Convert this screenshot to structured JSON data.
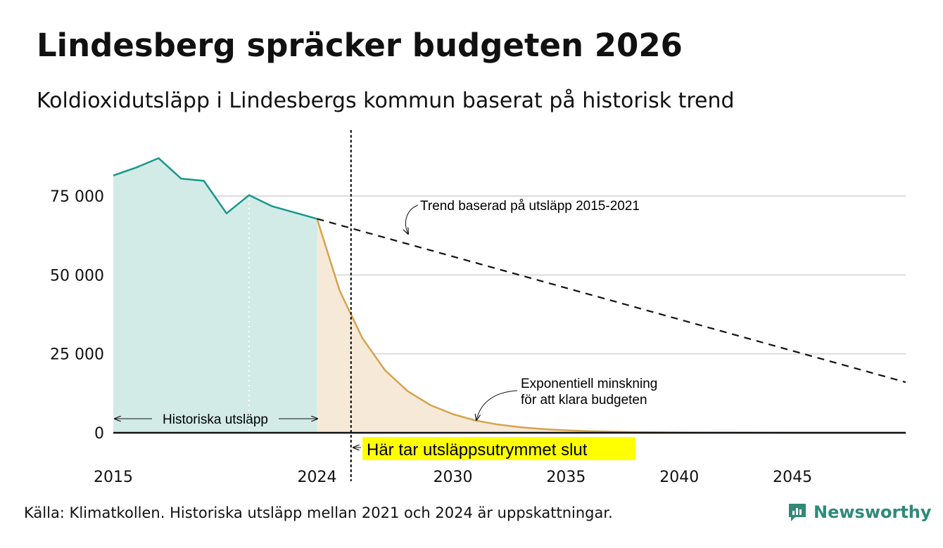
{
  "header": {
    "title": "Lindesberg spräcker budgeten 2026",
    "subtitle": "Koldioxidutsläpp i Lindesbergs kommun baserat på historisk trend"
  },
  "footer": {
    "source": "Källa: Klimatkollen. Historiska utsläpp mellan 2021 och 2024 är uppskattningar.",
    "brand": "Newsworthy"
  },
  "colors": {
    "historical_line": "#17978a",
    "historical_fill": "#d2ebe7",
    "decline_line": "#d5a44c",
    "decline_fill": "#f7e9d8",
    "highlight": "#ffff00",
    "grid": "#dcdcdc",
    "brand": "#2f8a78"
  },
  "chart_data": {
    "type": "area",
    "xlim": [
      2015,
      2050
    ],
    "ylim": [
      0,
      90000
    ],
    "x_ticks": [
      2015,
      2024,
      2030,
      2035,
      2040,
      2045
    ],
    "x_tick_labels": [
      "2015",
      "2024",
      "2030",
      "2035",
      "2040",
      "2045"
    ],
    "y_ticks": [
      0,
      25000,
      50000,
      75000
    ],
    "y_tick_labels": [
      "0",
      "25 000",
      "50 000",
      "75 000"
    ],
    "grid": true,
    "series": [
      {
        "style": "line-area",
        "x": [
          2015,
          2016,
          2017,
          2018,
          2019,
          2020,
          2021,
          2022,
          2023,
          2024
        ],
        "y": [
          81500,
          84000,
          87000,
          80500,
          79800,
          69500,
          75300,
          71800,
          69800,
          67800
        ]
      },
      {
        "style": "line-area",
        "x": [
          2024,
          2025,
          2026,
          2027,
          2028,
          2029,
          2030,
          2031,
          2032,
          2033,
          2034,
          2035,
          2036,
          2037,
          2038,
          2040,
          2042,
          2045,
          2050
        ],
        "y": [
          67800,
          45000,
          30000,
          19800,
          13200,
          8800,
          5900,
          3900,
          2600,
          1750,
          1150,
          780,
          520,
          350,
          230,
          100,
          40,
          10,
          0
        ]
      },
      {
        "style": "dashed",
        "x": [
          2024,
          2050
        ],
        "y": [
          67800,
          16000
        ]
      }
    ],
    "vertical_markers": [
      2021,
      2025.5
    ],
    "annotations": {
      "historical": "Historiska utsläpp",
      "trend": "Trend baserad på utsläpp 2015-2021",
      "decline_line1": "Exponentiell minskning",
      "decline_line2": "för att klara budgeten",
      "budget_end": "Här tar utsläppsutrymmet slut"
    }
  }
}
